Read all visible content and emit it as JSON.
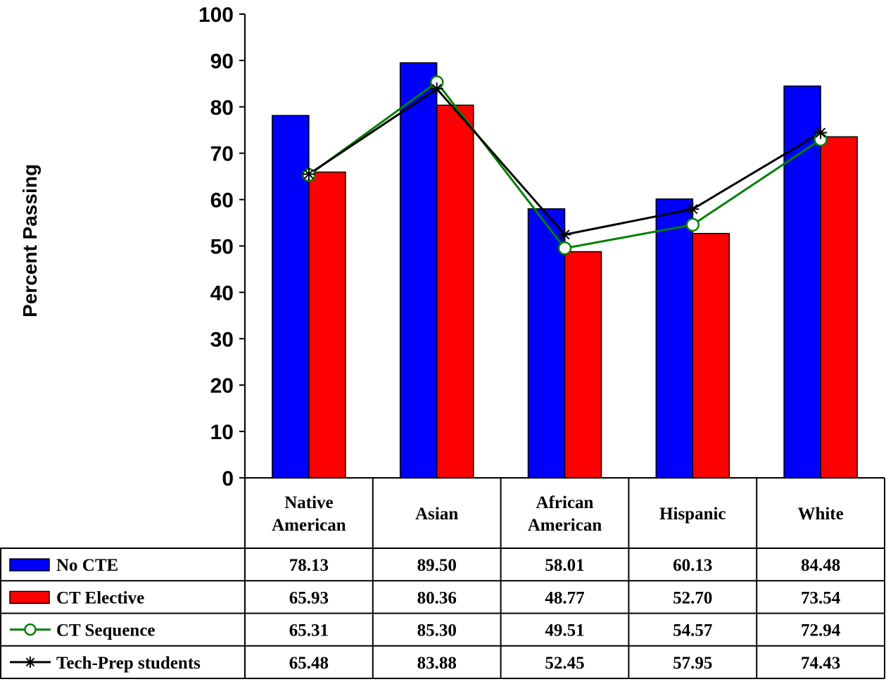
{
  "chart_data": {
    "type": "bar",
    "title": "",
    "xlabel": "",
    "ylabel": "Percent Passing",
    "ylim": [
      0,
      100
    ],
    "yticks": [
      0,
      10,
      20,
      30,
      40,
      50,
      60,
      70,
      80,
      90,
      100
    ],
    "categories": [
      "Native American",
      "Asian",
      "African American",
      "Hispanic",
      "White"
    ],
    "category_lines": [
      [
        "Native",
        "American"
      ],
      [
        "Asian"
      ],
      [
        "African",
        "American"
      ],
      [
        "Hispanic"
      ],
      [
        "White"
      ]
    ],
    "legend_placement": "data-table-left",
    "grid": false,
    "series": [
      {
        "name": "No CTE",
        "kind": "bar",
        "color": "#0000ff",
        "values": [
          78.13,
          89.5,
          58.01,
          60.13,
          84.48
        ],
        "labels": [
          "78.13",
          "89.50",
          "58.01",
          "60.13",
          "84.48"
        ]
      },
      {
        "name": "CT Elective",
        "kind": "bar",
        "color": "#ff0000",
        "values": [
          65.93,
          80.36,
          48.77,
          52.7,
          73.54
        ],
        "labels": [
          "65.93",
          "80.36",
          "48.77",
          "52.70",
          "73.54"
        ]
      },
      {
        "name": "CT Sequence",
        "kind": "line",
        "marker": "circle",
        "color": "#008000",
        "values": [
          65.31,
          85.3,
          49.51,
          54.57,
          72.94
        ],
        "labels": [
          "65.31",
          "85.30",
          "49.51",
          "54.57",
          "72.94"
        ]
      },
      {
        "name": "Tech-Prep students",
        "kind": "line",
        "marker": "star",
        "color": "#000000",
        "values": [
          65.48,
          83.88,
          52.45,
          57.95,
          74.43
        ],
        "labels": [
          "65.48",
          "83.88",
          "52.45",
          "57.95",
          "74.43"
        ]
      }
    ]
  }
}
